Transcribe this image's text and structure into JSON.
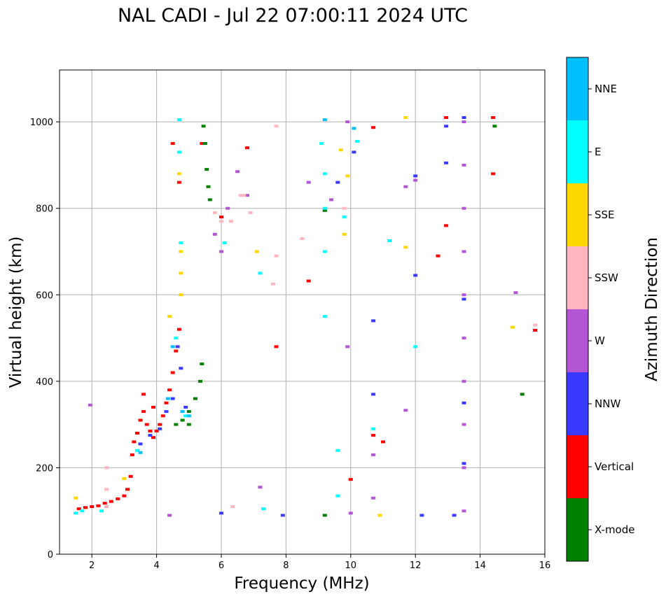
{
  "chart_data": {
    "type": "scatter",
    "title": "NAL CADI - Jul 22 07:00:11 2024 UTC",
    "xlabel": "Frequency (MHz)",
    "ylabel": "Virtual height (km)",
    "xlim": [
      1,
      16
    ],
    "ylim": [
      0,
      1120
    ],
    "xticks": [
      "2",
      "4",
      "6",
      "8",
      "10",
      "12",
      "14",
      "16"
    ],
    "yticks": [
      "0",
      "200",
      "400",
      "600",
      "800",
      "1000"
    ],
    "grid": true,
    "colorbar": {
      "label": "Azimuth Direction",
      "categories": [
        {
          "name": "X-mode",
          "color": "#008000"
        },
        {
          "name": "Vertical",
          "color": "#ff0000"
        },
        {
          "name": "NNW",
          "color": "#3a3aff"
        },
        {
          "name": "W",
          "color": "#b455d6"
        },
        {
          "name": "SSW",
          "color": "#ffb6c1"
        },
        {
          "name": "SSE",
          "color": "#ffd700"
        },
        {
          "name": "E",
          "color": "#00ffff"
        },
        {
          "name": "NNE",
          "color": "#00bfff"
        }
      ]
    },
    "series": [
      {
        "name": "Vertical",
        "points": [
          [
            1.6,
            105
          ],
          [
            1.8,
            108
          ],
          [
            2.0,
            110
          ],
          [
            2.2,
            112
          ],
          [
            2.4,
            118
          ],
          [
            2.6,
            122
          ],
          [
            2.8,
            128
          ],
          [
            3.0,
            135
          ],
          [
            3.1,
            150
          ],
          [
            3.2,
            180
          ],
          [
            3.25,
            230
          ],
          [
            3.3,
            260
          ],
          [
            3.4,
            280
          ],
          [
            3.5,
            310
          ],
          [
            3.6,
            330
          ],
          [
            3.7,
            300
          ],
          [
            3.8,
            285
          ],
          [
            3.9,
            270
          ],
          [
            4.0,
            285
          ],
          [
            4.1,
            300
          ],
          [
            4.2,
            320
          ],
          [
            4.3,
            350
          ],
          [
            4.4,
            380
          ],
          [
            4.5,
            420
          ],
          [
            4.6,
            470
          ],
          [
            4.7,
            520
          ],
          [
            4.5,
            950
          ],
          [
            4.7,
            860
          ],
          [
            5.4,
            950
          ],
          [
            7.7,
            480
          ],
          [
            10.0,
            173
          ],
          [
            10.7,
            275
          ],
          [
            11.0,
            260
          ],
          [
            12.7,
            690
          ],
          [
            12.95,
            1010
          ],
          [
            12.95,
            760
          ],
          [
            14.4,
            1010
          ],
          [
            14.4,
            880
          ],
          [
            15.7,
            518
          ],
          [
            8.7,
            632
          ],
          [
            6.8,
            940
          ],
          [
            10.7,
            987
          ],
          [
            6.0,
            780
          ],
          [
            3.6,
            370
          ],
          [
            3.9,
            340
          ]
        ]
      },
      {
        "name": "X-mode",
        "points": [
          [
            4.6,
            300
          ],
          [
            4.8,
            310
          ],
          [
            5.0,
            330
          ],
          [
            5.2,
            360
          ],
          [
            5.35,
            400
          ],
          [
            5.4,
            440
          ],
          [
            5.45,
            990
          ],
          [
            5.5,
            950
          ],
          [
            5.55,
            890
          ],
          [
            5.6,
            850
          ],
          [
            5.65,
            820
          ],
          [
            15.3,
            370
          ],
          [
            9.2,
            795
          ],
          [
            9.2,
            90
          ],
          [
            14.45,
            990
          ],
          [
            5.0,
            300
          ]
        ]
      },
      {
        "name": "NNW",
        "points": [
          [
            3.5,
            255
          ],
          [
            3.8,
            275
          ],
          [
            4.1,
            290
          ],
          [
            4.3,
            330
          ],
          [
            4.5,
            360
          ],
          [
            4.65,
            480
          ],
          [
            4.75,
            430
          ],
          [
            4.9,
            340
          ],
          [
            13.5,
            210
          ],
          [
            13.5,
            350
          ],
          [
            13.5,
            590
          ],
          [
            13.5,
            1010
          ],
          [
            12.95,
            990
          ],
          [
            12.95,
            905
          ],
          [
            10.7,
            540
          ],
          [
            10.1,
            930
          ],
          [
            12.0,
            875
          ],
          [
            6.0,
            95
          ],
          [
            7.9,
            90
          ],
          [
            12.2,
            90
          ],
          [
            13.2,
            90
          ],
          [
            9.6,
            860
          ],
          [
            12.0,
            645
          ],
          [
            10.7,
            370
          ]
        ]
      },
      {
        "name": "W",
        "points": [
          [
            6.0,
            700
          ],
          [
            5.8,
            740
          ],
          [
            6.2,
            800
          ],
          [
            6.5,
            885
          ],
          [
            6.8,
            830
          ],
          [
            8.7,
            860
          ],
          [
            9.4,
            820
          ],
          [
            9.9,
            480
          ],
          [
            9.9,
            1000
          ],
          [
            11.7,
            850
          ],
          [
            12.0,
            865
          ],
          [
            13.5,
            100
          ],
          [
            13.5,
            200
          ],
          [
            13.5,
            300
          ],
          [
            13.5,
            400
          ],
          [
            13.5,
            500
          ],
          [
            13.5,
            600
          ],
          [
            13.5,
            700
          ],
          [
            13.5,
            800
          ],
          [
            13.5,
            900
          ],
          [
            13.5,
            1000
          ],
          [
            15.1,
            605
          ],
          [
            1.95,
            345
          ],
          [
            10.7,
            230
          ],
          [
            10.7,
            130
          ],
          [
            11.7,
            333
          ],
          [
            4.4,
            90
          ],
          [
            7.2,
            155
          ],
          [
            10.0,
            95
          ]
        ]
      },
      {
        "name": "SSW",
        "points": [
          [
            2.45,
            200
          ],
          [
            2.45,
            150
          ],
          [
            2.45,
            110
          ],
          [
            5.8,
            790
          ],
          [
            6.0,
            770
          ],
          [
            6.3,
            770
          ],
          [
            6.6,
            830
          ],
          [
            6.9,
            790
          ],
          [
            7.7,
            690
          ],
          [
            8.5,
            730
          ],
          [
            15.7,
            530
          ],
          [
            6.35,
            110
          ],
          [
            7.6,
            625
          ],
          [
            9.8,
            800
          ],
          [
            6.7,
            830
          ],
          [
            7.7,
            990
          ]
        ]
      },
      {
        "name": "SSE",
        "points": [
          [
            1.5,
            130
          ],
          [
            4.75,
            700
          ],
          [
            4.75,
            650
          ],
          [
            4.75,
            600
          ],
          [
            4.7,
            880
          ],
          [
            4.4,
            550
          ],
          [
            15.0,
            525
          ],
          [
            11.7,
            710
          ],
          [
            11.7,
            1010
          ],
          [
            9.9,
            875
          ],
          [
            9.8,
            740
          ],
          [
            7.1,
            700
          ],
          [
            10.9,
            90
          ],
          [
            3.0,
            175
          ],
          [
            9.7,
            935
          ]
        ]
      },
      {
        "name": "E",
        "points": [
          [
            1.5,
            95
          ],
          [
            1.7,
            100
          ],
          [
            2.3,
            100
          ],
          [
            3.4,
            240
          ],
          [
            4.7,
            1005
          ],
          [
            4.7,
            930
          ],
          [
            4.75,
            720
          ],
          [
            4.9,
            320
          ],
          [
            4.6,
            500
          ],
          [
            9.1,
            950
          ],
          [
            9.2,
            880
          ],
          [
            9.2,
            800
          ],
          [
            9.2,
            700
          ],
          [
            9.2,
            550
          ],
          [
            9.6,
            135
          ],
          [
            9.6,
            240
          ],
          [
            10.7,
            290
          ],
          [
            12.0,
            480
          ],
          [
            7.3,
            105
          ],
          [
            6.1,
            720
          ],
          [
            7.2,
            650
          ],
          [
            10.2,
            955
          ],
          [
            11.2,
            725
          ],
          [
            9.8,
            780
          ]
        ]
      },
      {
        "name": "NNE",
        "points": [
          [
            3.5,
            235
          ],
          [
            4.35,
            360
          ],
          [
            4.5,
            480
          ],
          [
            4.8,
            330
          ],
          [
            5.0,
            320
          ],
          [
            9.2,
            1005
          ],
          [
            10.1,
            985
          ]
        ]
      }
    ]
  }
}
